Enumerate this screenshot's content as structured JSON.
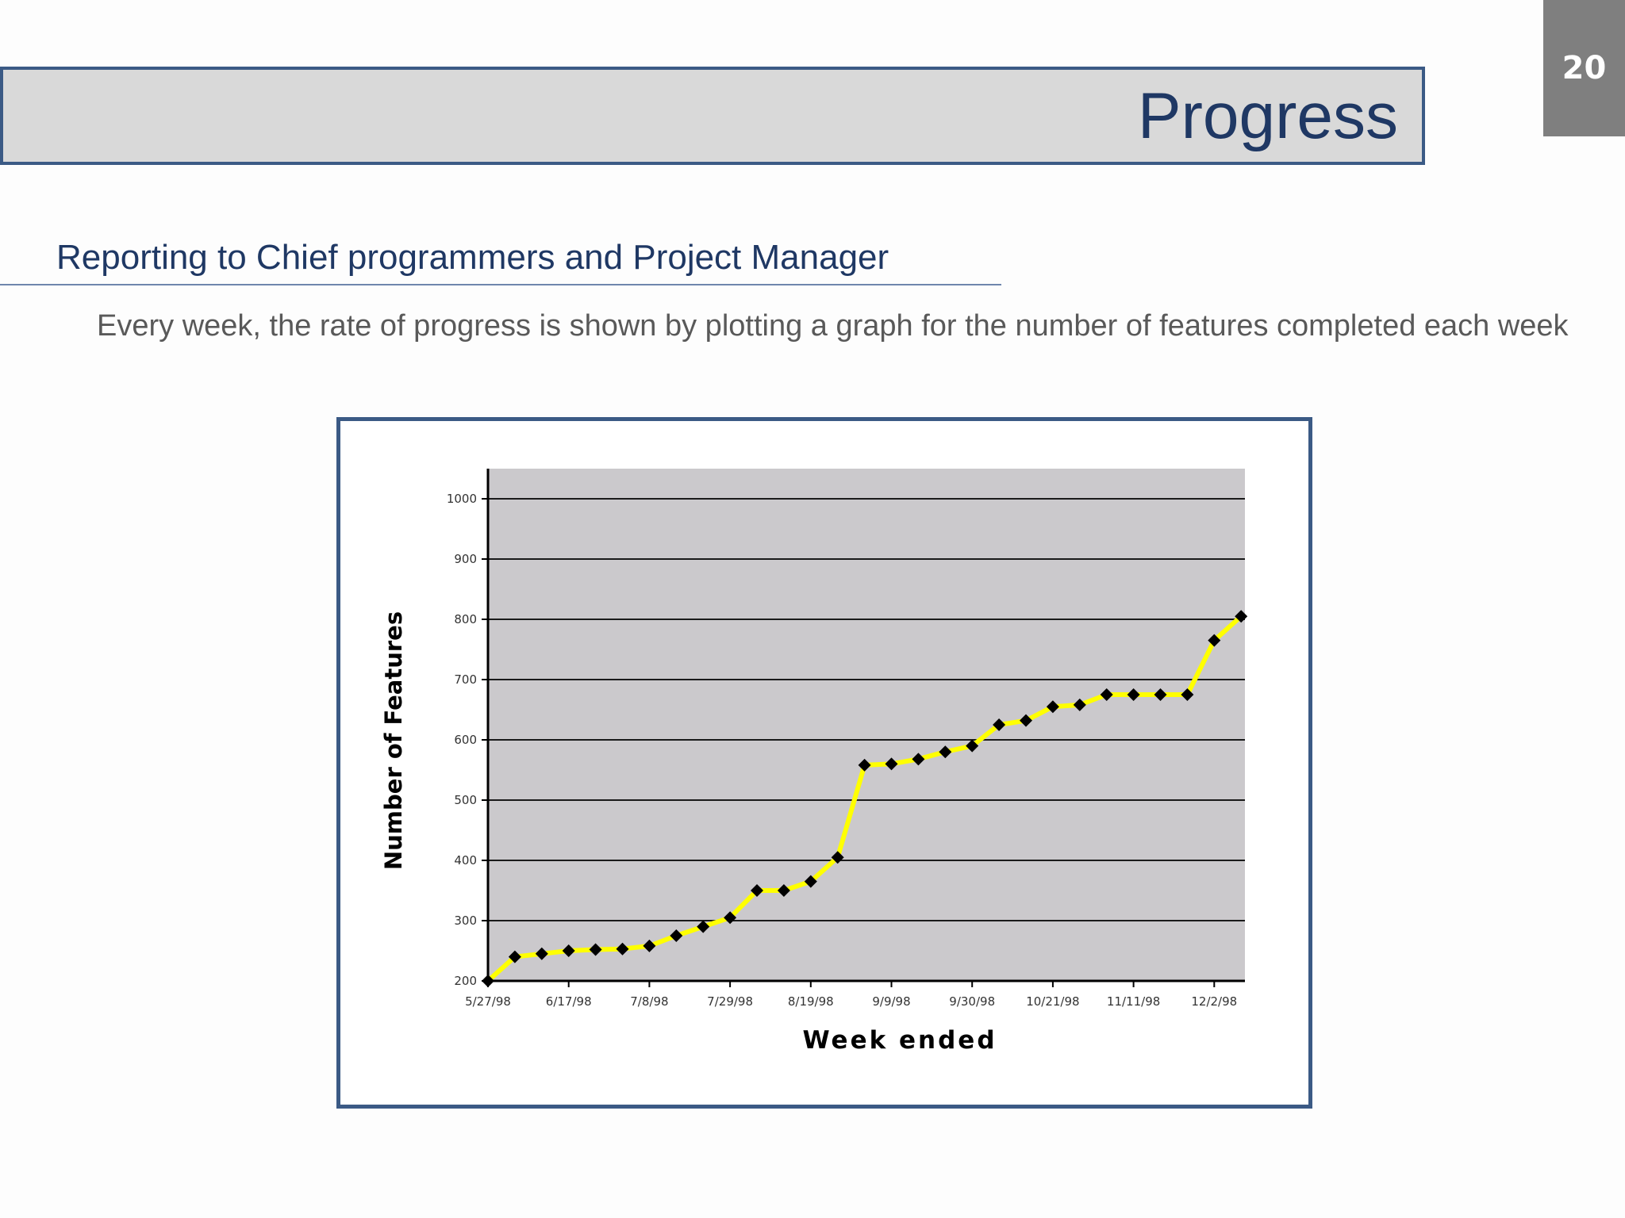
{
  "page_number": "20",
  "title": "Progress",
  "subtitle": "Reporting to Chief programmers and Project Manager",
  "body": "Every week, the rate of progress is shown by plotting a graph for the number of features completed each week",
  "colors": {
    "accent_dark_blue": "#1f3864",
    "frame_blue": "#3b5a85",
    "plot_background": "#cbc9cc",
    "series_line": "#ffff00",
    "markers": "#000000"
  },
  "chart_data": {
    "type": "line",
    "xlabel": "Week ended",
    "ylabel": "Number of Features",
    "ylim": [
      200,
      1050
    ],
    "y_ticks": [
      200,
      300,
      400,
      500,
      600,
      700,
      800,
      900,
      1000
    ],
    "x_tick_labels": [
      "5/27/98",
      "6/17/98",
      "7/8/98",
      "7/29/98",
      "8/19/98",
      "9/9/98",
      "9/30/98",
      "10/21/98",
      "11/11/98",
      "12/2/98"
    ],
    "grid": true,
    "legend": "none",
    "series": [
      {
        "values": [
          200,
          240,
          245,
          250,
          252,
          253,
          258,
          275,
          290,
          305,
          350,
          350,
          365,
          405,
          558,
          560,
          568,
          580,
          590,
          625,
          632,
          655,
          658,
          675,
          675,
          675,
          675,
          765,
          805
        ]
      }
    ]
  }
}
